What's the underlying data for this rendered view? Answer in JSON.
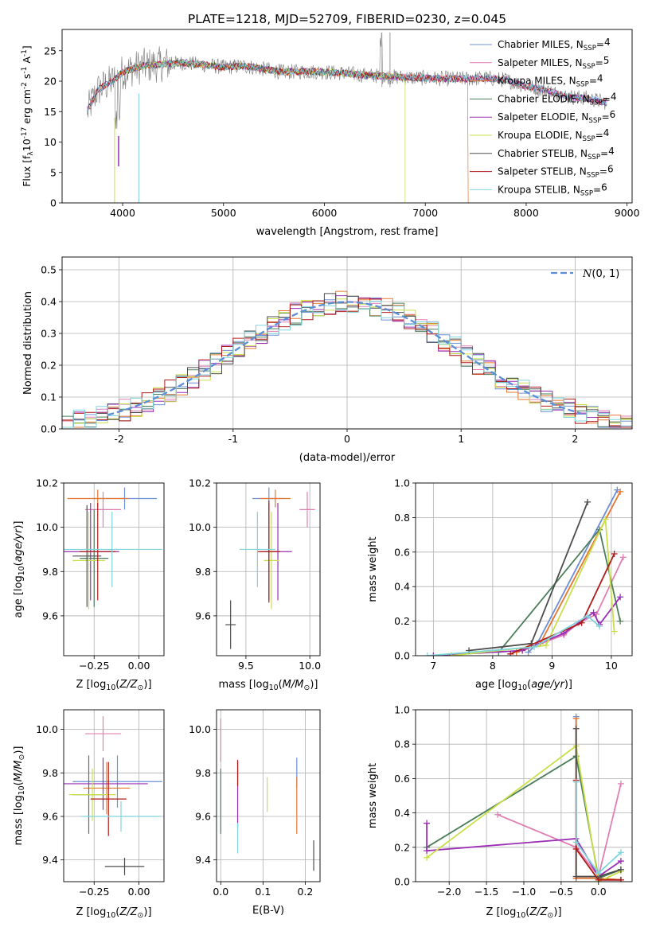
{
  "title": "PLATE=1218, MJD=52709, FIBERID=0230, z=0.045",
  "models": [
    {
      "name": "Chabrier MILES",
      "nssp": "4",
      "color": "#6d8fd6"
    },
    {
      "name": "Salpeter MILES",
      "nssp": "5",
      "color": "#e07fb3"
    },
    {
      "name": "Kroupa MILES",
      "nssp": "4",
      "color": "#e8772e"
    },
    {
      "name": "Chabrier ELODIE",
      "nssp": "4",
      "color": "#4b7d5a"
    },
    {
      "name": "Salpeter ELODIE",
      "nssp": "6",
      "color": "#9a2eb5"
    },
    {
      "name": "Kroupa ELODIE",
      "nssp": "4",
      "color": "#c9e04a"
    },
    {
      "name": "Chabrier STELIB",
      "nssp": "4",
      "color": "#4d4d4d"
    },
    {
      "name": "Salpeter STELIB",
      "nssp": "6",
      "color": "#b01b1b"
    },
    {
      "name": "Kroupa STELIB",
      "nssp": "6",
      "color": "#7fd4dc"
    }
  ],
  "chart_data": [
    {
      "id": "spectrum",
      "type": "line",
      "xlabel": "wavelength [Angstrom, rest frame]",
      "ylabel": "Flux [f",
      "ylabel_parts": [
        "Flux [f",
        "λ",
        "10",
        "-17",
        " erg cm",
        "-2",
        " s",
        "-1",
        " A",
        "-1",
        "]"
      ],
      "xlim": [
        3400,
        9050
      ],
      "ylim": [
        0,
        28.5
      ],
      "xticks": [
        4000,
        5000,
        6000,
        7000,
        8000,
        9000
      ],
      "yticks": [
        0,
        5,
        10,
        15,
        20,
        25
      ],
      "legend_position": "top-right",
      "continuum_x": [
        3650,
        3750,
        3900,
        4000,
        4100,
        4200,
        4400,
        4600,
        4800,
        5000,
        5200,
        5400,
        5600,
        5800,
        6000,
        6200,
        6400,
        6600,
        6800,
        7000,
        7200,
        7400,
        7600,
        7800,
        8000,
        8200,
        8400,
        8600,
        8800
      ],
      "continuum_y": [
        15,
        18.5,
        20,
        21.5,
        22,
        22.5,
        22.8,
        23,
        22.7,
        22.3,
        22.5,
        22,
        21.5,
        21.6,
        21.5,
        21.3,
        21,
        20.8,
        20.6,
        20.5,
        20.4,
        20.4,
        20.5,
        20.2,
        19.2,
        18.5,
        17.5,
        17.2,
        16.5
      ]
    },
    {
      "id": "residual-histogram",
      "type": "bar",
      "xlabel": "(data-model)/error",
      "ylabel": "Normed distribution",
      "xlim": [
        -2.5,
        2.5
      ],
      "ylim": [
        0,
        0.54
      ],
      "xticks": [
        -2,
        -1,
        0,
        1,
        2
      ],
      "yticks": [
        0.0,
        0.1,
        0.2,
        0.3,
        0.4,
        0.5
      ],
      "grid": true,
      "legend_label": "N(0, 1)",
      "legend_position": "top-right",
      "bin_width": 0.1
    },
    {
      "id": "age-vs-Z",
      "type": "scatter",
      "xlabel": "Z [log10(Z/Z⊙)]",
      "ylabel": "age  [log10(age/yr)]",
      "xlim": [
        -0.42,
        0.14
      ],
      "ylim": [
        9.42,
        10.2
      ],
      "xticks": [
        -0.25,
        0.0
      ],
      "xticklabels": [
        "−0.25",
        "0.00"
      ],
      "yticks": [
        9.6,
        9.8,
        10.0,
        10.2
      ],
      "grid": true,
      "points": [
        {
          "x": -0.08,
          "y": 10.13,
          "xerr": 0.18,
          "yerr": 0.05
        },
        {
          "x": -0.2,
          "y": 10.08,
          "xerr": 0.1,
          "yerr": 0.08
        },
        {
          "x": -0.23,
          "y": 10.13,
          "xerr": 0.17,
          "yerr": 0.04
        },
        {
          "x": -0.25,
          "y": 9.86,
          "xerr": 0.08,
          "yerr": 0.22
        },
        {
          "x": -0.27,
          "y": 9.89,
          "xerr": 0.16,
          "yerr": 0.22
        },
        {
          "x": -0.28,
          "y": 9.85,
          "xerr": 0.09,
          "yerr": 0.22
        },
        {
          "x": -0.29,
          "y": 9.87,
          "xerr": 0.08,
          "yerr": 0.23
        },
        {
          "x": -0.23,
          "y": 9.89,
          "xerr": 0.1,
          "yerr": 0.22
        },
        {
          "x": -0.15,
          "y": 9.9,
          "xerr": 0.28,
          "yerr": 0.17
        }
      ]
    },
    {
      "id": "age-vs-mass",
      "type": "scatter",
      "xlabel": "mass [log10(M/M⊙)]",
      "xlim": [
        9.27,
        10.08
      ],
      "ylim": [
        9.42,
        10.2
      ],
      "xticks": [
        9.5,
        10.0
      ],
      "xticklabels": [
        "9.5",
        "10.0"
      ],
      "yticks": [
        9.6,
        9.8,
        10.0,
        10.2
      ],
      "grid": true,
      "points": [
        {
          "x": 9.68,
          "y": 10.13,
          "xerr": 0.13,
          "yerr": 0.05
        },
        {
          "x": 9.98,
          "y": 10.08,
          "xerr": 0.06,
          "yerr": 0.08
        },
        {
          "x": 9.73,
          "y": 10.13,
          "xerr": 0.12,
          "yerr": 0.04
        },
        {
          "x": 9.68,
          "y": 9.89,
          "xerr": 0.07,
          "yerr": 0.22
        },
        {
          "x": 9.75,
          "y": 9.89,
          "xerr": 0.11,
          "yerr": 0.22
        },
        {
          "x": 9.7,
          "y": 9.85,
          "xerr": 0.06,
          "yerr": 0.22
        },
        {
          "x": 9.38,
          "y": 9.56,
          "xerr": 0.04,
          "yerr": 0.11
        },
        {
          "x": 9.68,
          "y": 9.89,
          "xerr": 0.09,
          "yerr": 0.23
        },
        {
          "x": 9.59,
          "y": 9.9,
          "xerr": 0.14,
          "yerr": 0.17
        }
      ]
    },
    {
      "id": "massweight-vs-age",
      "type": "line",
      "xlabel": "age  [log10(age/yr)]",
      "ylabel": "mass weight",
      "xlim": [
        6.7,
        10.35
      ],
      "ylim": [
        0,
        1.0
      ],
      "xticks": [
        7,
        8,
        9,
        10
      ],
      "yticks": [
        0.0,
        0.2,
        0.4,
        0.6,
        0.8,
        1.0
      ],
      "grid": true,
      "series": [
        {
          "x": [
            8.6,
            8.75,
            10.1
          ],
          "y": [
            0.02,
            0.07,
            0.96
          ]
        },
        {
          "x": [
            8.5,
            9.2,
            9.45,
            9.75,
            10.2
          ],
          "y": [
            0.03,
            0.12,
            0.19,
            0.24,
            0.57
          ]
        },
        {
          "x": [
            8.4,
            8.8,
            10.15
          ],
          "y": [
            0.02,
            0.07,
            0.95
          ]
        },
        {
          "x": [
            8.1,
            9.8,
            10.15
          ],
          "y": [
            0.02,
            0.73,
            0.2
          ]
        },
        {
          "x": [
            7.0,
            8.5,
            9.2,
            9.7,
            9.8,
            10.15
          ],
          "y": [
            0.0,
            0.03,
            0.13,
            0.25,
            0.18,
            0.34
          ]
        },
        {
          "x": [
            7.3,
            8.9,
            9.9,
            10.05
          ],
          "y": [
            0.0,
            0.06,
            0.79,
            0.14
          ]
        },
        {
          "x": [
            7.6,
            8.65,
            9.6
          ],
          "y": [
            0.03,
            0.07,
            0.89
          ]
        },
        {
          "x": [
            8.3,
            9.5,
            10.05
          ],
          "y": [
            0.01,
            0.19,
            0.59
          ]
        },
        {
          "x": [
            6.9,
            8.7,
            9.6,
            9.8
          ],
          "y": [
            0.0,
            0.05,
            0.23,
            0.17
          ]
        }
      ]
    },
    {
      "id": "mass-vs-Z",
      "type": "scatter",
      "xlabel": "Z [log10(Z/Z⊙)]",
      "ylabel": "mass [log10(M/M⊙)]",
      "xlim": [
        -0.42,
        0.14
      ],
      "ylim": [
        9.3,
        10.09
      ],
      "xticks": [
        -0.25,
        0.0
      ],
      "xticklabels": [
        "−0.25",
        "0.00"
      ],
      "yticks": [
        9.4,
        9.6,
        9.8,
        10.0
      ],
      "grid": true,
      "points": [
        {
          "x": -0.12,
          "y": 9.76,
          "xerr": 0.25,
          "yerr": 0.12
        },
        {
          "x": -0.2,
          "y": 9.98,
          "xerr": 0.1,
          "yerr": 0.08
        },
        {
          "x": -0.18,
          "y": 9.73,
          "xerr": 0.13,
          "yerr": 0.12
        },
        {
          "x": -0.28,
          "y": 9.7,
          "xerr": 0.09,
          "yerr": 0.18
        },
        {
          "x": -0.2,
          "y": 9.75,
          "xerr": 0.25,
          "yerr": 0.12
        },
        {
          "x": -0.26,
          "y": 9.7,
          "xerr": 0.13,
          "yerr": 0.12
        },
        {
          "x": -0.08,
          "y": 9.37,
          "xerr": 0.11,
          "yerr": 0.04
        },
        {
          "x": -0.17,
          "y": 9.68,
          "xerr": 0.1,
          "yerr": 0.17
        },
        {
          "x": -0.1,
          "y": 9.6,
          "xerr": 0.22,
          "yerr": 0.07
        }
      ]
    },
    {
      "id": "mass-vs-ebv",
      "type": "scatter",
      "xlabel": "E(B-V)",
      "xlim": [
        -0.01,
        0.235
      ],
      "ylim": [
        9.3,
        10.09
      ],
      "xticks": [
        0.0,
        0.1,
        0.2
      ],
      "xticklabels": [
        "0.0",
        "0.1",
        "0.2"
      ],
      "yticks": [
        9.4,
        9.6,
        9.8,
        10.0
      ],
      "grid": true,
      "points": [
        {
          "x": 0.18,
          "y": 9.8,
          "xerr": 0,
          "yerr": 0.07
        },
        {
          "x": 0.0,
          "y": 9.95,
          "xerr": 0,
          "yerr": 0.1
        },
        {
          "x": 0.18,
          "y": 9.65,
          "xerr": 0,
          "yerr": 0.13
        },
        {
          "x": 0.0,
          "y": 9.67,
          "xerr": 0,
          "yerr": 0.15
        },
        {
          "x": 0.04,
          "y": 9.7,
          "xerr": 0,
          "yerr": 0.15
        },
        {
          "x": 0.11,
          "y": 9.7,
          "xerr": 0,
          "yerr": 0.08
        },
        {
          "x": 0.22,
          "y": 9.42,
          "xerr": 0,
          "yerr": 0.07
        },
        {
          "x": 0.04,
          "y": 9.8,
          "xerr": 0,
          "yerr": 0.06
        },
        {
          "x": 0.04,
          "y": 9.5,
          "xerr": 0,
          "yerr": 0.07
        }
      ]
    },
    {
      "id": "massweight-vs-Z",
      "type": "line",
      "xlabel": "Z [log10(Z/Z⊙)]",
      "ylabel": "mass weight",
      "xlim": [
        -2.45,
        0.45
      ],
      "ylim": [
        0,
        1.0
      ],
      "xticks": [
        -2.0,
        -1.5,
        -1.0,
        -0.5,
        0.0
      ],
      "xticklabels": [
        "−2.0",
        "−1.5",
        "−1.0",
        "−0.5",
        "0.0"
      ],
      "yticks": [
        0.0,
        0.2,
        0.4,
        0.6,
        0.8,
        1.0
      ],
      "grid": true,
      "series": [
        {
          "x": [
            -0.3,
            -0.3,
            0.0,
            0.3
          ],
          "y": [
            0.96,
            0.02,
            0.02,
            0.01
          ]
        },
        {
          "x": [
            -1.35,
            -0.3,
            0.0,
            0.3
          ],
          "y": [
            0.39,
            0.2,
            0.03,
            0.57
          ]
        },
        {
          "x": [
            -0.3,
            -0.3,
            0.0,
            0.3
          ],
          "y": [
            0.95,
            0.02,
            0.02,
            0.01
          ]
        },
        {
          "x": [
            -2.3,
            -0.3,
            0.0,
            0.3
          ],
          "y": [
            0.2,
            0.73,
            0.02,
            0.07
          ]
        },
        {
          "x": [
            -2.3,
            -2.3,
            -0.3,
            0.0,
            0.3
          ],
          "y": [
            0.34,
            0.18,
            0.25,
            0.03,
            0.12
          ]
        },
        {
          "x": [
            -2.3,
            -0.3,
            0.0,
            0.3
          ],
          "y": [
            0.14,
            0.79,
            0.0,
            0.06
          ]
        },
        {
          "x": [
            -0.3,
            -0.3,
            0.0,
            0.3
          ],
          "y": [
            0.89,
            0.03,
            0.03,
            0.07
          ]
        },
        {
          "x": [
            -0.3,
            -0.3,
            0.0,
            0.3
          ],
          "y": [
            0.59,
            0.19,
            0.01,
            0.01
          ]
        },
        {
          "x": [
            -0.3,
            -0.3,
            0.0,
            0.3
          ],
          "y": [
            0.58,
            0.23,
            0.05,
            0.17
          ]
        }
      ]
    }
  ]
}
